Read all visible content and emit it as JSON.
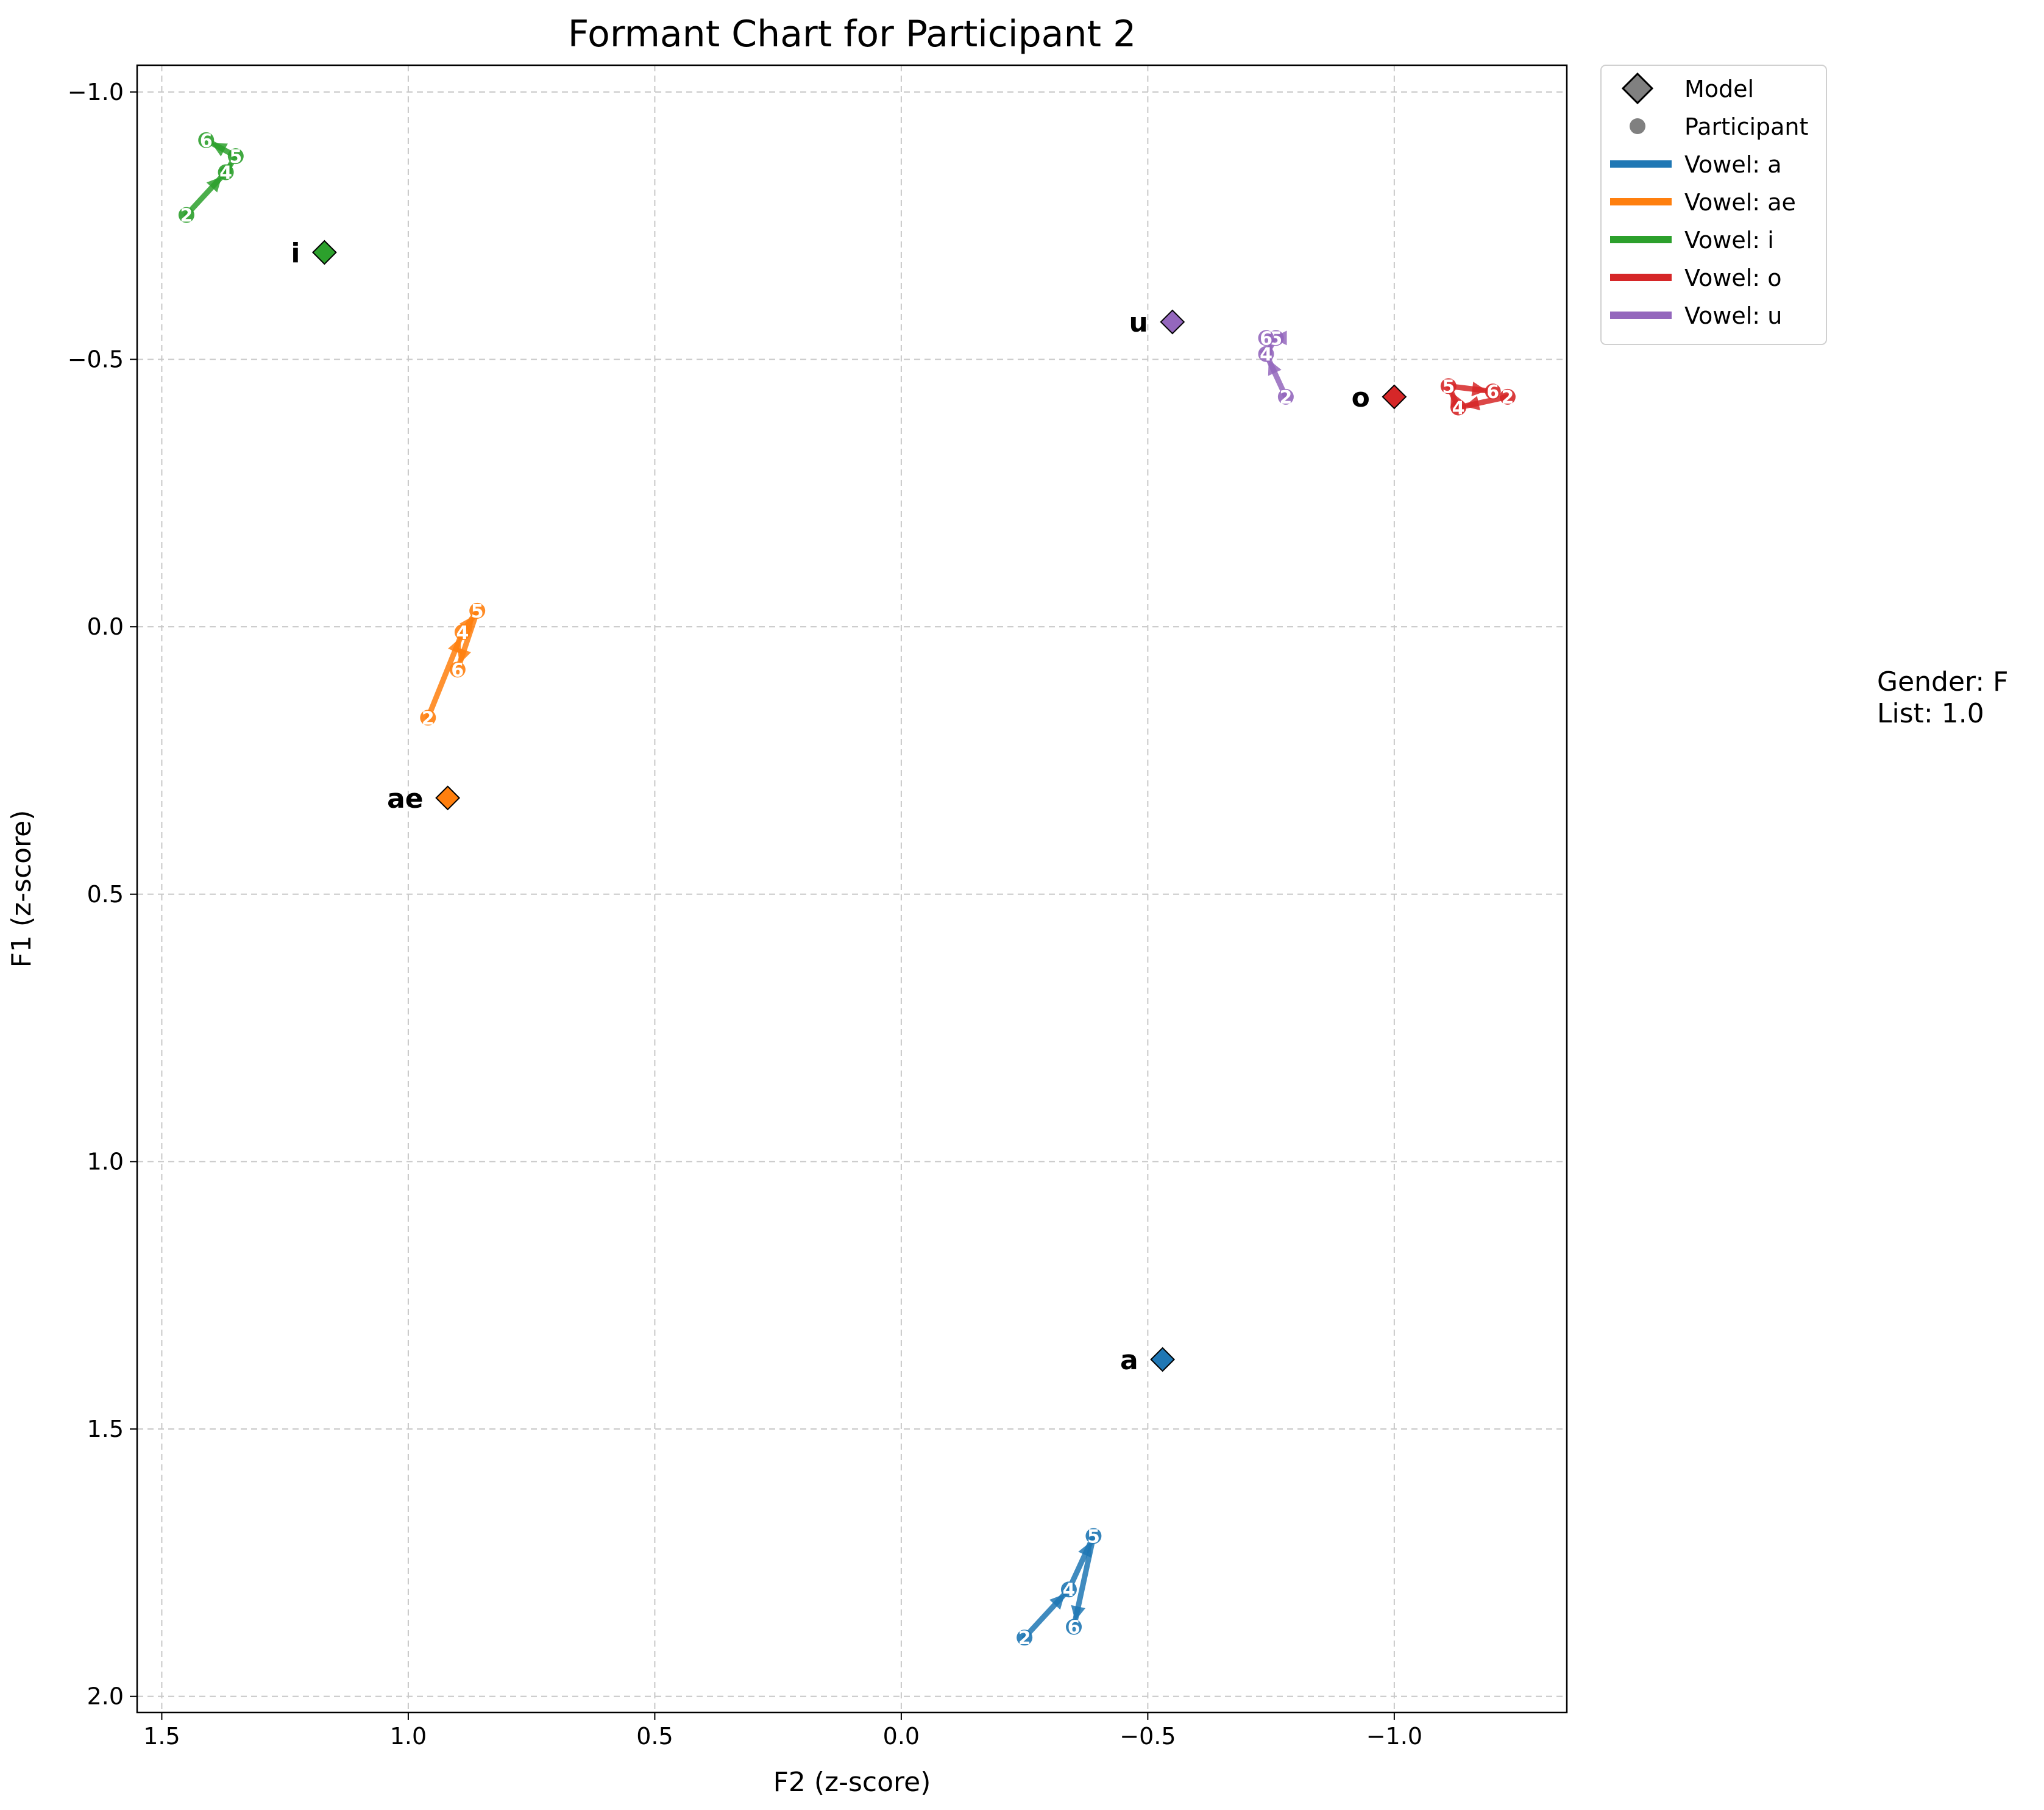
{
  "chart_data": {
    "type": "line",
    "title": "Formant Chart for Participant 2",
    "xlabel": "F2 (z-score)",
    "ylabel": "F1 (z-score)",
    "xlim": [
      1.55,
      -1.35
    ],
    "ylim": [
      2.03,
      -1.05
    ],
    "x_inverted": true,
    "y_inverted": true,
    "grid": true,
    "x_ticks": [
      1.5,
      1.0,
      0.5,
      0.0,
      -0.5,
      -1.0
    ],
    "x_tick_labels": [
      "1.5",
      "1.0",
      "0.5",
      "0.0",
      "−0.5",
      "−1.0"
    ],
    "y_ticks": [
      -1.0,
      -0.5,
      0.0,
      0.5,
      1.0,
      1.5,
      2.0
    ],
    "y_tick_labels": [
      "−1.0",
      "−0.5",
      "0.0",
      "0.5",
      "1.0",
      "1.5",
      "2.0"
    ],
    "legend_position": "outside-top-right",
    "legend": [
      {
        "label": "Model",
        "marker": "diamond",
        "color": "#808080"
      },
      {
        "label": "Participant",
        "marker": "circle",
        "color": "#808080"
      },
      {
        "label": "Vowel: a",
        "marker": "line",
        "color": "#1f77b4"
      },
      {
        "label": "Vowel: ae",
        "marker": "line",
        "color": "#ff7f0e"
      },
      {
        "label": "Vowel: i",
        "marker": "line",
        "color": "#2ca02c"
      },
      {
        "label": "Vowel: o",
        "marker": "line",
        "color": "#d62728"
      },
      {
        "label": "Vowel: u",
        "marker": "line",
        "color": "#9467bd"
      }
    ],
    "series": [
      {
        "name": "a",
        "color": "#1f77b4",
        "model": {
          "x": -0.53,
          "y": 1.37
        },
        "participant": [
          {
            "label": "2",
            "x": -0.25,
            "y": 1.89
          },
          {
            "label": "4",
            "x": -0.34,
            "y": 1.8
          },
          {
            "label": "5",
            "x": -0.39,
            "y": 1.7
          },
          {
            "label": "6",
            "x": -0.35,
            "y": 1.87
          }
        ]
      },
      {
        "name": "ae",
        "color": "#ff7f0e",
        "model": {
          "x": 0.92,
          "y": 0.32
        },
        "participant": [
          {
            "label": "2",
            "x": 0.96,
            "y": 0.17
          },
          {
            "label": "4",
            "x": 0.89,
            "y": 0.01
          },
          {
            "label": "5",
            "x": 0.86,
            "y": -0.03
          },
          {
            "label": "6",
            "x": 0.9,
            "y": 0.08
          }
        ]
      },
      {
        "name": "i",
        "color": "#2ca02c",
        "model": {
          "x": 1.17,
          "y": -0.7
        },
        "participant": [
          {
            "label": "2",
            "x": 1.45,
            "y": -0.77
          },
          {
            "label": "4",
            "x": 1.37,
            "y": -0.85
          },
          {
            "label": "5",
            "x": 1.35,
            "y": -0.88
          },
          {
            "label": "6",
            "x": 1.41,
            "y": -0.91
          }
        ]
      },
      {
        "name": "o",
        "color": "#d62728",
        "model": {
          "x": -1.0,
          "y": -0.43
        },
        "participant": [
          {
            "label": "2",
            "x": -1.23,
            "y": -0.43
          },
          {
            "label": "4",
            "x": -1.13,
            "y": -0.41
          },
          {
            "label": "5",
            "x": -1.11,
            "y": -0.45
          },
          {
            "label": "6",
            "x": -1.2,
            "y": -0.44
          }
        ]
      },
      {
        "name": "u",
        "color": "#9467bd",
        "model": {
          "x": -0.55,
          "y": -0.57
        },
        "participant": [
          {
            "label": "2",
            "x": -0.78,
            "y": -0.43
          },
          {
            "label": "4",
            "x": -0.74,
            "y": -0.51
          },
          {
            "label": "5",
            "x": -0.76,
            "y": -0.54
          },
          {
            "label": "6",
            "x": -0.74,
            "y": -0.54
          }
        ]
      }
    ]
  },
  "info_box": {
    "gender": "Gender: F",
    "list": "List: 1.0"
  }
}
